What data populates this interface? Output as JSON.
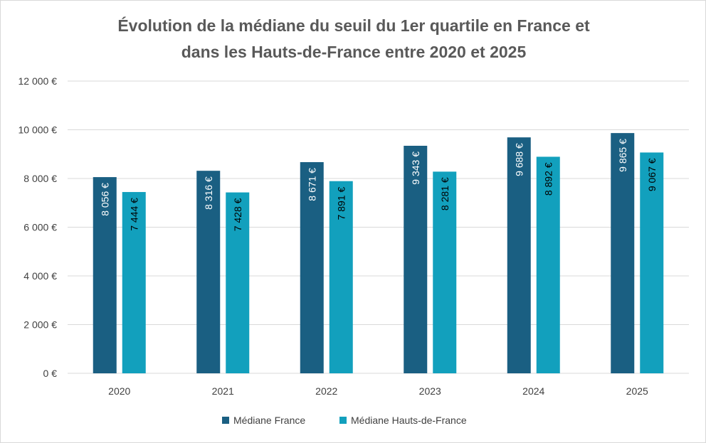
{
  "chart_data": {
    "type": "bar",
    "title_line1": "Évolution de la médiane du seuil du 1er quartile en France et",
    "title_line2": "dans les Hauts-de-France entre 2020 et 2025",
    "categories": [
      "2020",
      "2021",
      "2022",
      "2023",
      "2024",
      "2025"
    ],
    "series": [
      {
        "name": "Médiane France",
        "color": "#1a5f82",
        "label_color": "#ffffff",
        "values": [
          8056,
          8316,
          8671,
          9343,
          9688,
          9865
        ],
        "labels": [
          "8 056 €",
          "8 316 €",
          "8 671 €",
          "9 343 €",
          "9 688 €",
          "9 865 €"
        ]
      },
      {
        "name": "Médiane Hauts-de-France",
        "color": "#12a0bd",
        "label_color": "#000000",
        "values": [
          7444,
          7428,
          7891,
          8281,
          8892,
          9067
        ],
        "labels": [
          "7 444 €",
          "7 428 €",
          "7 891 €",
          "8 281 €",
          "8 892 €",
          "9 067 €"
        ]
      }
    ],
    "ylim": [
      0,
      12000
    ],
    "yticks": [
      0,
      2000,
      4000,
      6000,
      8000,
      10000,
      12000
    ],
    "ytick_labels": [
      "0 €",
      "2 000 €",
      "4 000 €",
      "6 000 €",
      "8 000 €",
      "10 000 €",
      "12 000 €"
    ],
    "grid": true,
    "legend_position": "bottom",
    "data_label_orientation": "vertical"
  }
}
